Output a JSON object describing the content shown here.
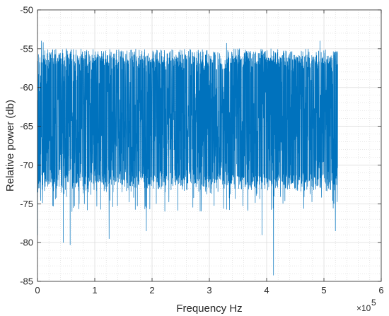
{
  "chart_data": {
    "type": "line",
    "title": "",
    "xlabel": "Frequency Hz",
    "ylabel": "Relative power (db)",
    "x_exponent_label": "×10",
    "x_exponent_power": "5",
    "xlim": [
      0,
      6
    ],
    "ylim": [
      -85,
      -50
    ],
    "x_scale_factor": 100000,
    "xticks": [
      "0",
      "1",
      "2",
      "3",
      "4",
      "5",
      "6"
    ],
    "yticks": [
      "-50",
      "-55",
      "-60",
      "-65",
      "-70",
      "-75",
      "-80",
      "-85"
    ],
    "grid": true,
    "minor_grid": true,
    "series": [
      {
        "color": "#0072BD",
        "x_range": [
          0,
          5.24
        ],
        "description_points": {
          "dense_band_top": -56.5,
          "dense_band_bottom": -72,
          "typical_peak_max": -55,
          "typical_trough_min": -76,
          "notable_spikes_up": [
            {
              "x": 0.07,
              "y": -54
            },
            {
              "x": 0.1,
              "y": -54.2
            },
            {
              "x": 3.3,
              "y": -54.3
            },
            {
              "x": 4.93,
              "y": -54
            },
            {
              "x": 0.5,
              "y": -55
            }
          ],
          "notable_spikes_down": [
            {
              "x": 0.0,
              "y": -79
            },
            {
              "x": 0.45,
              "y": -80
            },
            {
              "x": 0.57,
              "y": -80.3
            },
            {
              "x": 1.25,
              "y": -79.5
            },
            {
              "x": 1.9,
              "y": -78.5
            },
            {
              "x": 3.92,
              "y": -79
            },
            {
              "x": 4.12,
              "y": -84.2
            },
            {
              "x": 5.2,
              "y": -78.5
            }
          ]
        }
      }
    ]
  }
}
